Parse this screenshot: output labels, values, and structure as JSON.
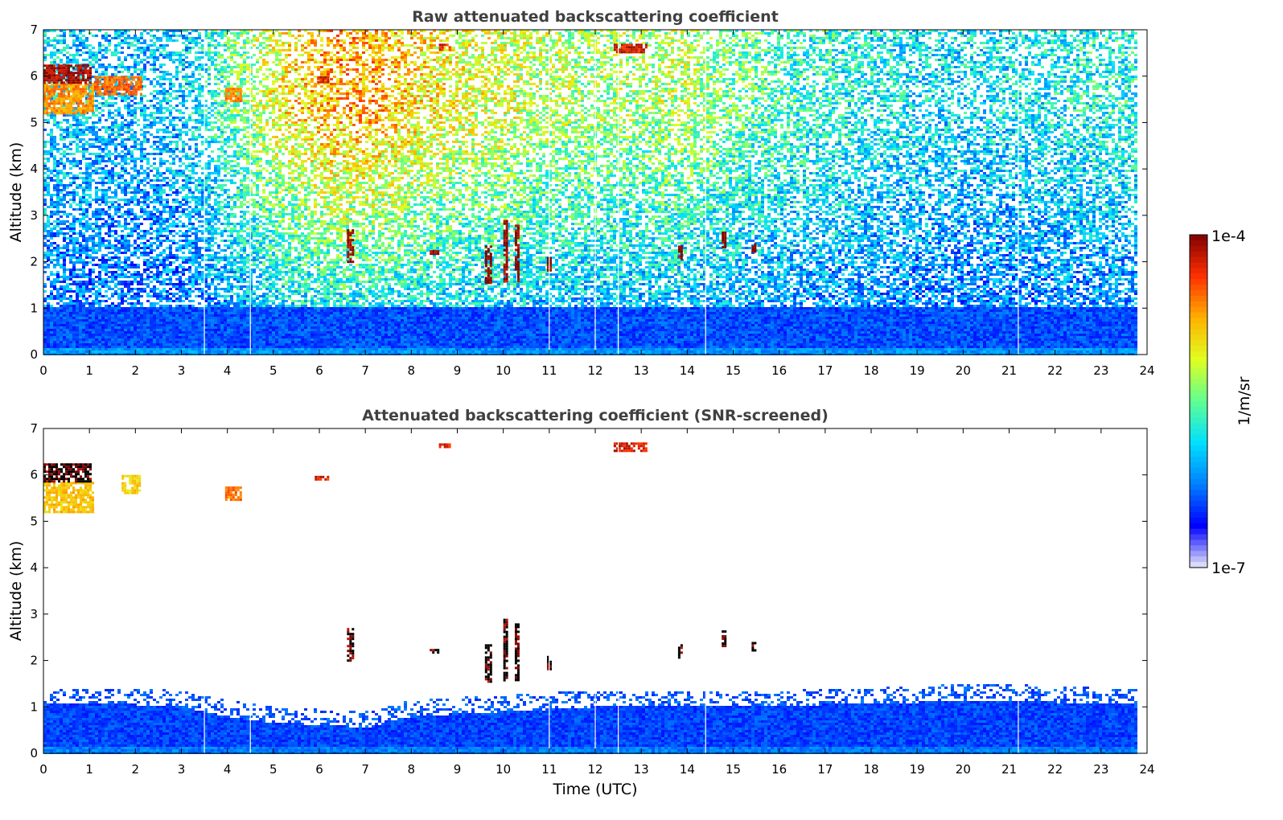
{
  "chart_data": [
    {
      "type": "heatmap",
      "title": "Raw attenuated backscattering coefficient",
      "xlabel": "",
      "ylabel": "Altitude (km)",
      "xlim": [
        0,
        24
      ],
      "ylim": [
        0,
        7
      ],
      "xticks": [
        "0",
        "1",
        "2",
        "3",
        "4",
        "5",
        "6",
        "7",
        "8",
        "9",
        "10",
        "11",
        "12",
        "13",
        "14",
        "15",
        "16",
        "17",
        "18",
        "19",
        "20",
        "21",
        "22",
        "23",
        "24"
      ],
      "yticks": [
        "0",
        "1",
        "2",
        "3",
        "4",
        "5",
        "6",
        "7"
      ],
      "data_end_hour": 23.8,
      "gap_times": [
        3.5,
        4.5,
        11.0,
        12.0,
        12.5,
        14.4,
        21.2
      ],
      "noise_level_by_hour": [
        0.3,
        0.28,
        0.27,
        0.28,
        0.42,
        0.58,
        0.68,
        0.7,
        0.64,
        0.58,
        0.56,
        0.52,
        0.5,
        0.5,
        0.52,
        0.45,
        0.4,
        0.37,
        0.35,
        0.32,
        0.31,
        0.32,
        0.34,
        0.36,
        0.36
      ],
      "cloud_features": [
        {
          "t0": 0.0,
          "t1": 1.05,
          "z0": 5.2,
          "z1": 5.85,
          "level": 0.78
        },
        {
          "t0": 0.0,
          "t1": 1.0,
          "z0": 5.85,
          "z1": 6.25,
          "level": 0.96
        },
        {
          "t0": 1.1,
          "t1": 2.1,
          "z0": 5.6,
          "z1": 6.0,
          "level": 0.82
        },
        {
          "t0": 3.95,
          "t1": 4.3,
          "z0": 5.45,
          "z1": 5.75,
          "level": 0.8
        },
        {
          "t0": 5.9,
          "t1": 6.2,
          "z0": 5.85,
          "z1": 6.0,
          "level": 0.9
        },
        {
          "t0": 8.6,
          "t1": 8.85,
          "z0": 6.55,
          "z1": 6.7,
          "level": 0.9
        },
        {
          "t0": 12.4,
          "t1": 13.1,
          "z0": 6.5,
          "z1": 6.7,
          "level": 0.92
        },
        {
          "t0": 6.6,
          "t1": 6.75,
          "z0": 2.0,
          "z1": 2.7,
          "level": 0.99
        },
        {
          "t0": 8.4,
          "t1": 8.6,
          "z0": 2.15,
          "z1": 2.25,
          "level": 0.99
        },
        {
          "t0": 9.6,
          "t1": 9.75,
          "z0": 1.55,
          "z1": 2.35,
          "level": 0.99
        },
        {
          "t0": 10.0,
          "t1": 10.1,
          "z0": 1.6,
          "z1": 2.9,
          "level": 0.99
        },
        {
          "t0": 10.25,
          "t1": 10.35,
          "z0": 1.6,
          "z1": 2.8,
          "level": 0.99
        },
        {
          "t0": 10.95,
          "t1": 11.05,
          "z0": 1.8,
          "z1": 2.1,
          "level": 0.99
        },
        {
          "t0": 13.8,
          "t1": 13.9,
          "z0": 2.05,
          "z1": 2.35,
          "level": 0.99
        },
        {
          "t0": 14.75,
          "t1": 14.85,
          "z0": 2.3,
          "z1": 2.65,
          "level": 0.99
        },
        {
          "t0": 15.4,
          "t1": 15.5,
          "z0": 2.2,
          "z1": 2.4,
          "level": 0.99
        }
      ]
    },
    {
      "type": "heatmap",
      "title": "Attenuated backscattering coefficient (SNR-screened)",
      "xlabel": "Time (UTC)",
      "ylabel": "Altitude (km)",
      "xlim": [
        0,
        24
      ],
      "ylim": [
        0,
        7
      ],
      "xticks": [
        "0",
        "1",
        "2",
        "3",
        "4",
        "5",
        "6",
        "7",
        "8",
        "9",
        "10",
        "11",
        "12",
        "13",
        "14",
        "15",
        "16",
        "17",
        "18",
        "19",
        "20",
        "21",
        "22",
        "23",
        "24"
      ],
      "yticks": [
        "0",
        "1",
        "2",
        "3",
        "4",
        "5",
        "6",
        "7"
      ],
      "data_end_hour": 23.8,
      "gap_times": [
        3.5,
        4.5,
        11.0,
        12.0,
        12.5,
        14.4,
        21.2
      ],
      "boundary_layer_top_km_by_hour": [
        1.05,
        1.05,
        1.05,
        1.0,
        0.8,
        0.65,
        0.62,
        0.55,
        0.8,
        0.85,
        0.9,
        0.95,
        1.0,
        1.0,
        1.0,
        1.0,
        1.0,
        1.05,
        1.05,
        1.1,
        1.15,
        1.15,
        1.1,
        1.05,
        1.05
      ],
      "cloud_features": [
        {
          "t0": 0.0,
          "t1": 1.05,
          "z0": 5.2,
          "z1": 5.85,
          "level": 0.72
        },
        {
          "t0": 0.0,
          "t1": 1.0,
          "z0": 5.85,
          "z1": 6.25,
          "level": 1.0
        },
        {
          "t0": 1.7,
          "t1": 2.1,
          "z0": 5.6,
          "z1": 6.0,
          "level": 0.7
        },
        {
          "t0": 3.95,
          "t1": 4.3,
          "z0": 5.45,
          "z1": 5.75,
          "level": 0.8
        },
        {
          "t0": 5.9,
          "t1": 6.2,
          "z0": 5.9,
          "z1": 5.98,
          "level": 0.9
        },
        {
          "t0": 8.6,
          "t1": 8.85,
          "z0": 6.6,
          "z1": 6.68,
          "level": 0.9
        },
        {
          "t0": 12.4,
          "t1": 13.1,
          "z0": 6.5,
          "z1": 6.7,
          "level": 0.92
        },
        {
          "t0": 6.6,
          "t1": 6.75,
          "z0": 2.0,
          "z1": 2.7,
          "level": 1.0
        },
        {
          "t0": 8.4,
          "t1": 8.6,
          "z0": 2.15,
          "z1": 2.25,
          "level": 1.0
        },
        {
          "t0": 9.6,
          "t1": 9.75,
          "z0": 1.55,
          "z1": 2.35,
          "level": 1.0
        },
        {
          "t0": 10.0,
          "t1": 10.1,
          "z0": 1.6,
          "z1": 2.9,
          "level": 1.0
        },
        {
          "t0": 10.25,
          "t1": 10.35,
          "z0": 1.6,
          "z1": 2.8,
          "level": 1.0
        },
        {
          "t0": 10.95,
          "t1": 11.05,
          "z0": 1.8,
          "z1": 2.1,
          "level": 1.0
        },
        {
          "t0": 13.8,
          "t1": 13.9,
          "z0": 2.05,
          "z1": 2.35,
          "level": 1.0
        },
        {
          "t0": 14.75,
          "t1": 14.85,
          "z0": 2.3,
          "z1": 2.65,
          "level": 1.0
        },
        {
          "t0": 15.4,
          "t1": 15.5,
          "z0": 2.2,
          "z1": 2.4,
          "level": 1.0
        }
      ]
    }
  ],
  "colorbar": {
    "label": "1/m/sr",
    "max_label": "1e-4",
    "min_label": "1e-7",
    "colormap": "jet",
    "colors": [
      "#e8e8f8",
      "#0000ff",
      "#0080ff",
      "#00e0ff",
      "#60ff90",
      "#e0ff20",
      "#ffb000",
      "#ff3000",
      "#800000"
    ]
  }
}
